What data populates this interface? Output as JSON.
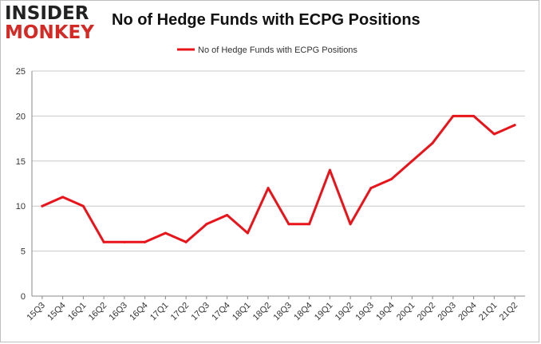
{
  "logo": {
    "line1": "INSIDER",
    "line2": "MONKEY"
  },
  "colors": {
    "series": "#e8141a",
    "grid": "#c8c8c8",
    "axis": "#888888",
    "logo_red": "#d42a26"
  },
  "chart_data": {
    "type": "line",
    "title": "No of Hedge Funds with ECPG Positions",
    "xlabel": "",
    "ylabel": "",
    "ylim": [
      0,
      25
    ],
    "yticks": [
      0,
      5,
      10,
      15,
      20,
      25
    ],
    "grid": true,
    "legend_position": "top-center",
    "categories": [
      "15Q3",
      "15Q4",
      "16Q1",
      "16Q2",
      "16Q3",
      "16Q4",
      "17Q1",
      "17Q2",
      "17Q3",
      "17Q4",
      "18Q1",
      "18Q2",
      "18Q3",
      "18Q4",
      "19Q1",
      "19Q2",
      "19Q3",
      "19Q4",
      "20Q1",
      "20Q2",
      "20Q3",
      "20Q4",
      "21Q1",
      "21Q2"
    ],
    "series": [
      {
        "name": "No of Hedge Funds with ECPG Positions",
        "values": [
          10,
          11,
          10,
          6,
          6,
          6,
          7,
          6,
          8,
          9,
          7,
          12,
          8,
          8,
          14,
          8,
          12,
          13,
          15,
          17,
          20,
          20,
          18,
          19
        ]
      }
    ]
  }
}
